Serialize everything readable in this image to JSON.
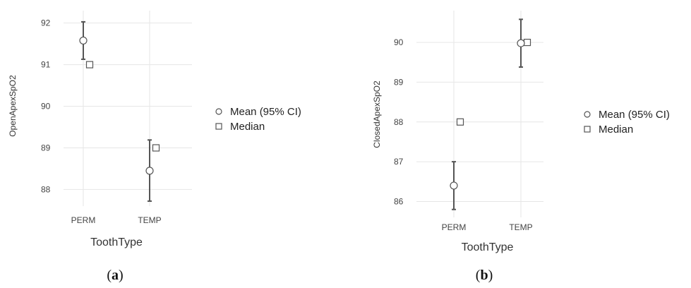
{
  "legend": {
    "mean_label": "Mean (95% CI)",
    "median_label": "Median"
  },
  "chart_data": [
    {
      "type": "scatter",
      "panel_label": "a",
      "xlabel": "ToothType",
      "ylabel": "OpenApexSpO2",
      "categories": [
        "PERM",
        "TEMP"
      ],
      "ylim": [
        87.6,
        92.3
      ],
      "yticks": [
        88,
        89,
        90,
        91,
        92
      ],
      "grid": true,
      "legend_position": "right",
      "series": [
        {
          "name": "Mean (95% CI)",
          "marker": "circle",
          "values": [
            91.58,
            88.45
          ],
          "ci_low": [
            91.13,
            87.72
          ],
          "ci_high": [
            92.03,
            89.19
          ]
        },
        {
          "name": "Median",
          "marker": "square",
          "values": [
            91.0,
            89.0
          ]
        }
      ]
    },
    {
      "type": "scatter",
      "panel_label": "b",
      "xlabel": "ToothType",
      "ylabel": "ClosedApexSpO2",
      "categories": [
        "PERM",
        "TEMP"
      ],
      "ylim": [
        85.6,
        90.8
      ],
      "yticks": [
        86,
        87,
        88,
        89,
        90
      ],
      "grid": true,
      "legend_position": "right",
      "series": [
        {
          "name": "Mean (95% CI)",
          "marker": "circle",
          "values": [
            86.4,
            89.98
          ],
          "ci_low": [
            85.8,
            89.38
          ],
          "ci_high": [
            87.0,
            90.58
          ]
        },
        {
          "name": "Median",
          "marker": "square",
          "values": [
            88.0,
            90.0
          ]
        }
      ]
    }
  ]
}
